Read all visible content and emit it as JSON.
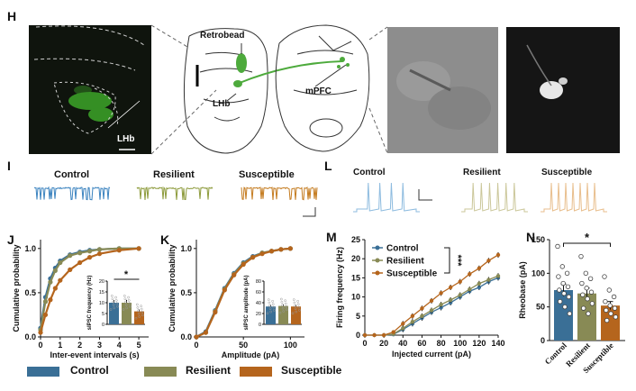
{
  "panel_labels": {
    "H": "H",
    "I": "I",
    "J": "J",
    "K": "K",
    "L": "L",
    "M": "M",
    "N": "N"
  },
  "panel_h": {
    "micrograph_label": "LHb",
    "schematic_labels": [
      "Retrobead",
      "LHb",
      "mPFC"
    ],
    "colors": {
      "tissue_bg": "#0f140d",
      "fluor": "#3fae2a",
      "slice_line": "#333333",
      "tract": "#4daa3c"
    }
  },
  "panel_i": {
    "groups": [
      "Control",
      "Resilient",
      "Susceptible"
    ],
    "colors": [
      "#3b83bf",
      "#8c9a3a",
      "#c47b1f"
    ]
  },
  "panel_l": {
    "groups": [
      "Control",
      "Resilient",
      "Susceptible"
    ],
    "colors": [
      "#8dbbdf",
      "#cbc79a",
      "#e8be8c"
    ]
  },
  "colors": {
    "control": "#3a6f96",
    "resilient": "#888a55",
    "susceptible": "#b5651d"
  },
  "legend_bottom": [
    "Control",
    "Resilient",
    "Susceptible"
  ],
  "chart_data": [
    {
      "panel": "J",
      "type": "line",
      "xlabel": "Inter-event intervals (s)",
      "ylabel": "Cumulative probability",
      "xlim": [
        0,
        5.5
      ],
      "ylim": [
        0,
        1.1
      ],
      "xticks": [
        "0",
        "1",
        "2",
        "3",
        "4",
        "5"
      ],
      "yticks": [
        "0.0",
        "0.5",
        "1.0"
      ],
      "series": [
        {
          "name": "Control",
          "x": [
            0,
            0.25,
            0.5,
            0.75,
            1,
            1.5,
            2,
            2.5,
            3,
            4,
            5
          ],
          "y": [
            0.1,
            0.45,
            0.66,
            0.78,
            0.86,
            0.93,
            0.96,
            0.98,
            0.99,
            1.0,
            1.0
          ]
        },
        {
          "name": "Resilient",
          "x": [
            0,
            0.25,
            0.5,
            0.75,
            1,
            1.5,
            2,
            2.5,
            3,
            4,
            5
          ],
          "y": [
            0.08,
            0.4,
            0.62,
            0.75,
            0.84,
            0.92,
            0.95,
            0.97,
            0.99,
            1.0,
            1.0
          ]
        },
        {
          "name": "Susceptible",
          "x": [
            0,
            0.25,
            0.5,
            0.75,
            1,
            1.5,
            2,
            2.5,
            3,
            4,
            5
          ],
          "y": [
            0.05,
            0.25,
            0.42,
            0.55,
            0.64,
            0.76,
            0.84,
            0.9,
            0.94,
            0.98,
            1.0
          ]
        }
      ],
      "inset": {
        "type": "bar",
        "ylabel": "sIPSC frequency (Hz)",
        "yticks": [
          "0",
          "5",
          "10",
          "15",
          "20"
        ],
        "ylim": [
          0,
          20
        ],
        "values": [
          10,
          10,
          6
        ],
        "errors": [
          1.2,
          1.3,
          0.9
        ],
        "significance": "*"
      }
    },
    {
      "panel": "K",
      "type": "line",
      "xlabel": "Amplitude (pA)",
      "ylabel": "Cumulative probability",
      "xlim": [
        0,
        115
      ],
      "ylim": [
        0,
        1.1
      ],
      "xticks": [
        "0",
        "50",
        "100"
      ],
      "yticks": [
        "0.0",
        "0.5",
        "1.0"
      ],
      "series": [
        {
          "name": "Control",
          "x": [
            0,
            10,
            20,
            30,
            40,
            50,
            60,
            70,
            80,
            90,
            100
          ],
          "y": [
            0,
            0.06,
            0.3,
            0.55,
            0.72,
            0.84,
            0.91,
            0.95,
            0.97,
            0.99,
            1.0
          ]
        },
        {
          "name": "Resilient",
          "x": [
            0,
            10,
            20,
            30,
            40,
            50,
            60,
            70,
            80,
            90,
            100
          ],
          "y": [
            0,
            0.05,
            0.29,
            0.54,
            0.71,
            0.83,
            0.9,
            0.95,
            0.97,
            0.99,
            1.0
          ]
        },
        {
          "name": "Susceptible",
          "x": [
            0,
            10,
            20,
            30,
            40,
            50,
            60,
            70,
            80,
            90,
            100
          ],
          "y": [
            0,
            0.05,
            0.28,
            0.53,
            0.7,
            0.82,
            0.9,
            0.94,
            0.97,
            0.99,
            1.0
          ]
        }
      ],
      "inset": {
        "type": "bar",
        "ylabel": "sIPSC amplitude (pA)",
        "yticks": [
          "0",
          "20",
          "40",
          "60",
          "80"
        ],
        "ylim": [
          0,
          80
        ],
        "values": [
          33,
          34,
          33
        ],
        "errors": [
          3,
          3,
          3
        ]
      }
    },
    {
      "panel": "M",
      "type": "line",
      "xlabel": "Injected current (pA)",
      "ylabel": "Firing frequency (Hz)",
      "xlim": [
        0,
        140
      ],
      "ylim": [
        0,
        25
      ],
      "xticks": [
        "0",
        "20",
        "40",
        "60",
        "80",
        "100",
        "120",
        "140"
      ],
      "yticks": [
        "0",
        "5",
        "10",
        "15",
        "20",
        "25"
      ],
      "series": [
        {
          "name": "Control",
          "x": [
            0,
            10,
            20,
            30,
            40,
            50,
            60,
            70,
            80,
            90,
            100,
            110,
            120,
            130,
            140
          ],
          "y": [
            0,
            0,
            0,
            0.2,
            1.5,
            3,
            4.5,
            6,
            7.2,
            8.5,
            10,
            11.5,
            12.5,
            14,
            15
          ]
        },
        {
          "name": "Resilient",
          "x": [
            0,
            10,
            20,
            30,
            40,
            50,
            60,
            70,
            80,
            90,
            100,
            110,
            120,
            130,
            140
          ],
          "y": [
            0,
            0,
            0,
            0.3,
            1.8,
            3.5,
            5,
            6.5,
            8,
            9.2,
            10.5,
            12,
            13.5,
            14.5,
            15.5
          ]
        },
        {
          "name": "Susceptible",
          "x": [
            0,
            10,
            20,
            30,
            40,
            50,
            60,
            70,
            80,
            90,
            100,
            110,
            120,
            130,
            140
          ],
          "y": [
            0,
            0,
            0,
            0.8,
            3,
            5,
            7,
            9,
            11,
            12.5,
            14,
            16,
            17.5,
            19.5,
            21
          ]
        }
      ],
      "legend": [
        "Control",
        "Resilient",
        "Susceptible"
      ],
      "significance": "***"
    },
    {
      "panel": "N",
      "type": "bar",
      "ylabel": "Rheobase (pA)",
      "categories": [
        "Control",
        "Resilient",
        "Susceptible"
      ],
      "values": [
        75,
        70,
        52
      ],
      "errors": [
        9,
        8,
        6
      ],
      "ylim": [
        0,
        150
      ],
      "yticks": [
        "0",
        "50",
        "100",
        "150"
      ],
      "points": [
        [
          140,
          110,
          100,
          95,
          85,
          80,
          75,
          70,
          65,
          58,
          50,
          40
        ],
        [
          125,
          100,
          92,
          85,
          78,
          72,
          68,
          62,
          55,
          48,
          40
        ],
        [
          95,
          75,
          65,
          58,
          52,
          48,
          45,
          40,
          35,
          30
        ]
      ],
      "significance": "*"
    }
  ]
}
